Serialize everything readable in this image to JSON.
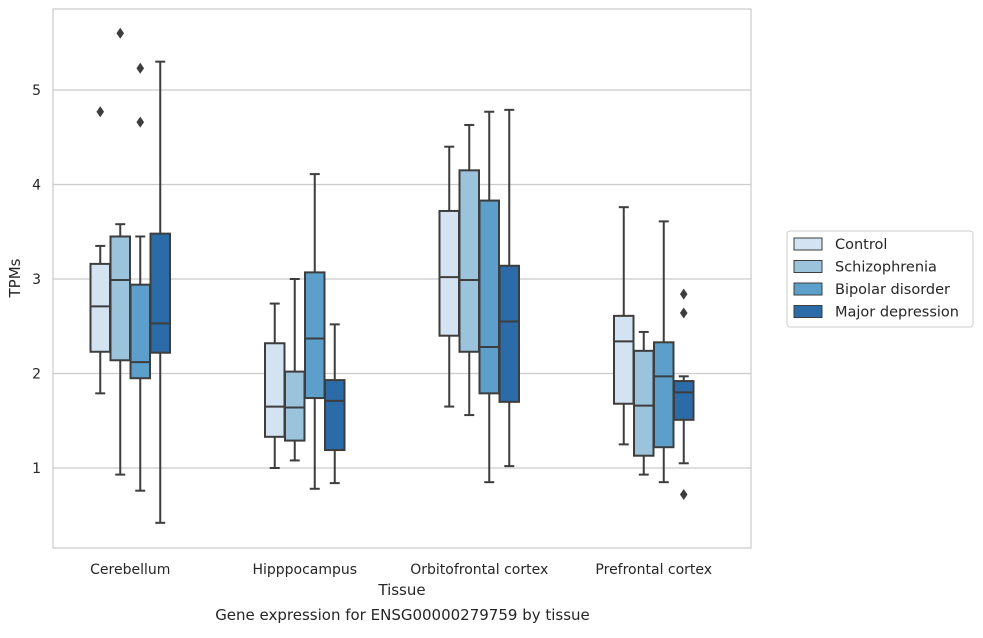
{
  "caption": "Gene expression for ENSG00000279759 by tissue",
  "chart_data": {
    "type": "box",
    "title": "",
    "xlabel": "Tissue",
    "ylabel": "TPMs",
    "ylim": [
      0.2,
      5.9
    ],
    "yticks": [
      1,
      2,
      3,
      4,
      5
    ],
    "grid": "horizontal",
    "legend_position": "right",
    "categories": [
      "Cerebellum",
      "Hipppocampus",
      "Orbitofrontal cortex",
      "Prefrontal cortex"
    ],
    "series": [
      {
        "name": "Control",
        "color": "#d3e3f2",
        "boxes": [
          {
            "whisker_low": 1.79,
            "q1": 2.23,
            "median": 2.71,
            "q3": 3.16,
            "whisker_high": 3.35,
            "outliers": [
              4.77
            ]
          },
          {
            "whisker_low": 1.0,
            "q1": 1.33,
            "median": 1.65,
            "q3": 2.32,
            "whisker_high": 2.74,
            "outliers": []
          },
          {
            "whisker_low": 1.65,
            "q1": 2.4,
            "median": 3.02,
            "q3": 3.72,
            "whisker_high": 4.4,
            "outliers": []
          },
          {
            "whisker_low": 1.25,
            "q1": 1.68,
            "median": 2.34,
            "q3": 2.61,
            "whisker_high": 3.76,
            "outliers": []
          }
        ]
      },
      {
        "name": "Schizophrenia",
        "color": "#9cc3dc",
        "boxes": [
          {
            "whisker_low": 0.93,
            "q1": 2.14,
            "median": 2.99,
            "q3": 3.45,
            "whisker_high": 3.58,
            "outliers": [
              5.6
            ]
          },
          {
            "whisker_low": 1.08,
            "q1": 1.29,
            "median": 1.64,
            "q3": 2.02,
            "whisker_high": 3.0,
            "outliers": []
          },
          {
            "whisker_low": 1.56,
            "q1": 2.23,
            "median": 2.99,
            "q3": 4.15,
            "whisker_high": 4.63,
            "outliers": []
          },
          {
            "whisker_low": 0.93,
            "q1": 1.13,
            "median": 1.66,
            "q3": 2.24,
            "whisker_high": 2.44,
            "outliers": []
          }
        ]
      },
      {
        "name": "Bipolar disorder",
        "color": "#5c9fcb",
        "boxes": [
          {
            "whisker_low": 0.76,
            "q1": 1.95,
            "median": 2.12,
            "q3": 2.94,
            "whisker_high": 3.45,
            "outliers": [
              4.66,
              5.23
            ]
          },
          {
            "whisker_low": 0.78,
            "q1": 1.74,
            "median": 2.37,
            "q3": 3.07,
            "whisker_high": 4.11,
            "outliers": []
          },
          {
            "whisker_low": 0.85,
            "q1": 1.79,
            "median": 2.28,
            "q3": 3.83,
            "whisker_high": 4.77,
            "outliers": []
          },
          {
            "whisker_low": 0.85,
            "q1": 1.22,
            "median": 1.97,
            "q3": 2.33,
            "whisker_high": 3.61,
            "outliers": []
          }
        ]
      },
      {
        "name": "Major depression",
        "color": "#2a6ba8",
        "boxes": [
          {
            "whisker_low": 0.42,
            "q1": 2.22,
            "median": 2.53,
            "q3": 3.48,
            "whisker_high": 5.3,
            "outliers": []
          },
          {
            "whisker_low": 0.84,
            "q1": 1.19,
            "median": 1.71,
            "q3": 1.93,
            "whisker_high": 2.52,
            "outliers": []
          },
          {
            "whisker_low": 1.02,
            "q1": 1.7,
            "median": 2.55,
            "q3": 3.14,
            "whisker_high": 4.79,
            "outliers": []
          },
          {
            "whisker_low": 1.05,
            "q1": 1.51,
            "median": 1.8,
            "q3": 1.92,
            "whisker_high": 1.97,
            "outliers": [
              0.72,
              2.64,
              2.84
            ]
          }
        ]
      }
    ]
  }
}
